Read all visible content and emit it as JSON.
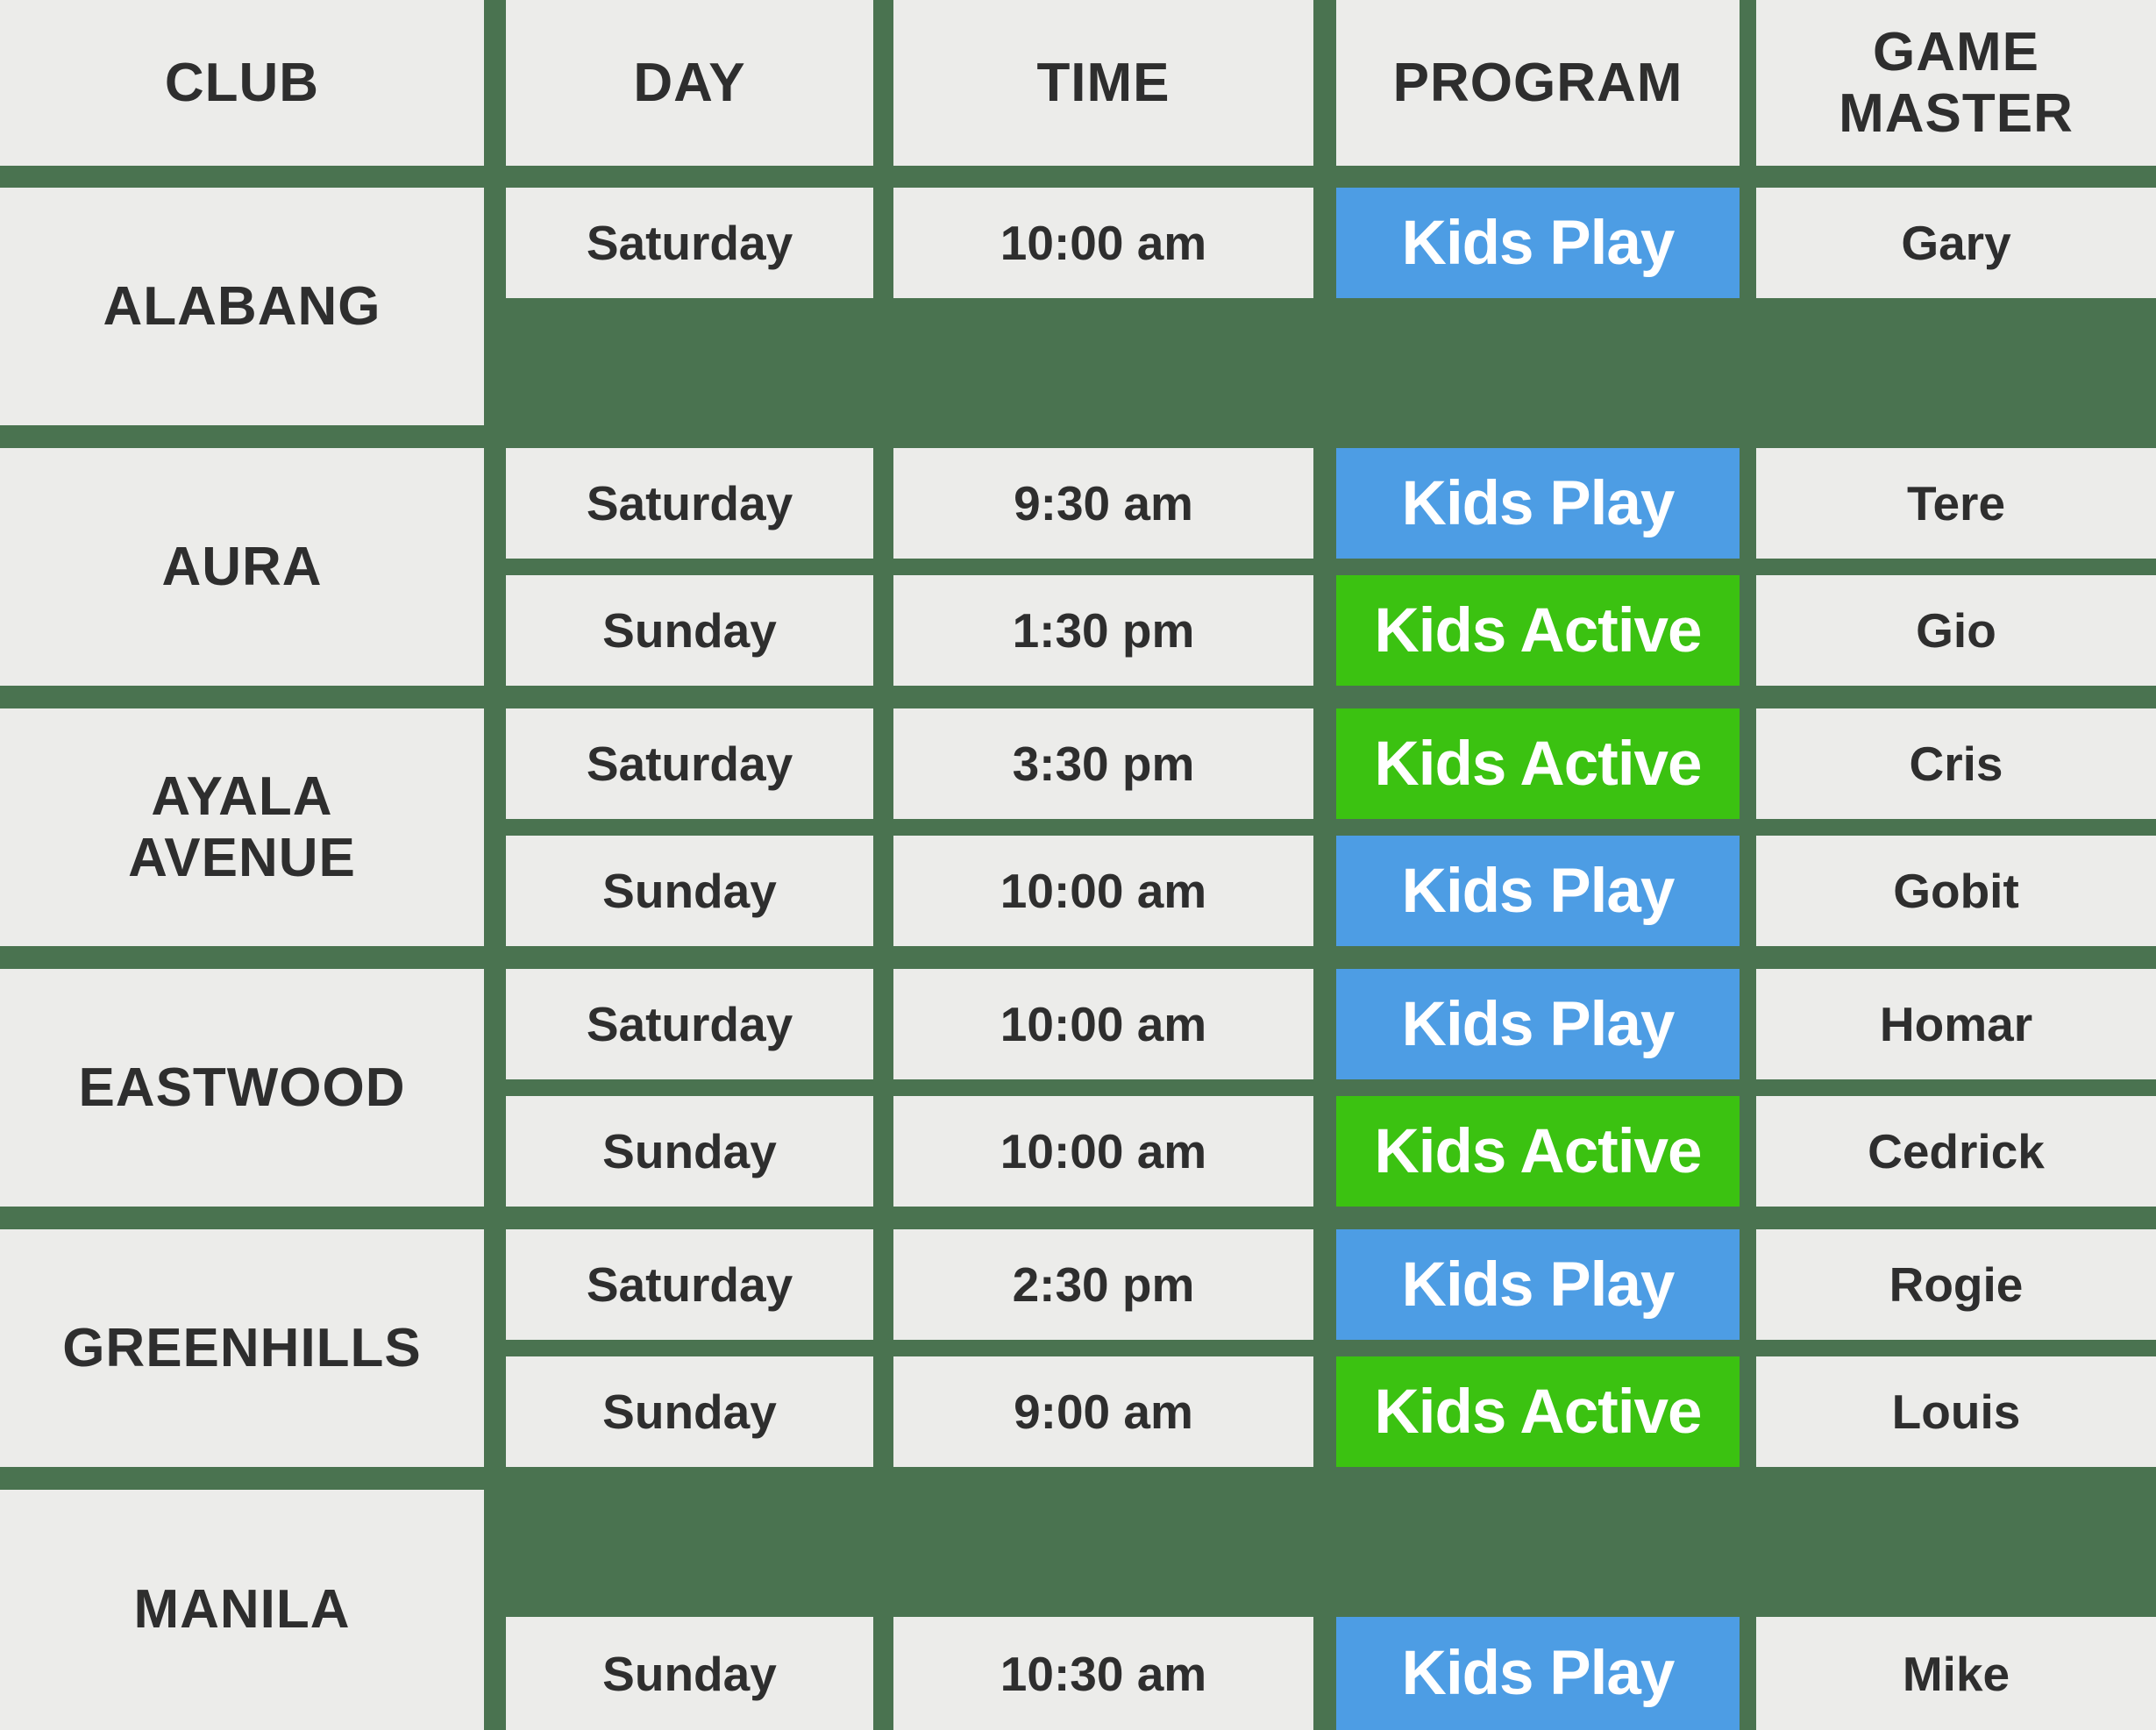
{
  "colors": {
    "background_green": "#4A7350",
    "cell_gray": "#ECECEA",
    "text_dark": "#2E2E2E",
    "kids_play_blue": "#4D9DE4",
    "kids_active_green": "#3BC211",
    "badge_text_white": "#FFFFFF"
  },
  "header": {
    "club": "CLUB",
    "day": "DAY",
    "time": "TIME",
    "program": "PROGRAM",
    "game_master": "GAME\nMASTER"
  },
  "sections": [
    {
      "club": "ALABANG",
      "rows": [
        {
          "day": "Saturday",
          "time": "10:00 am",
          "program": {
            "label": "Kids Play",
            "type": "kids-play"
          },
          "game_master": "Gary"
        },
        null
      ]
    },
    {
      "club": "AURA",
      "rows": [
        {
          "day": "Saturday",
          "time": "9:30 am",
          "program": {
            "label": "Kids Play",
            "type": "kids-play"
          },
          "game_master": "Tere"
        },
        {
          "day": "Sunday",
          "time": "1:30 pm",
          "program": {
            "label": "Kids Active",
            "type": "kids-active"
          },
          "game_master": "Gio"
        }
      ]
    },
    {
      "club": "AYALA\nAVENUE",
      "rows": [
        {
          "day": "Saturday",
          "time": "3:30 pm",
          "program": {
            "label": "Kids Active",
            "type": "kids-active"
          },
          "game_master": "Cris"
        },
        {
          "day": "Sunday",
          "time": "10:00 am",
          "program": {
            "label": "Kids Play",
            "type": "kids-play"
          },
          "game_master": "Gobit"
        }
      ]
    },
    {
      "club": "EASTWOOD",
      "rows": [
        {
          "day": "Saturday",
          "time": "10:00 am",
          "program": {
            "label": "Kids Play",
            "type": "kids-play"
          },
          "game_master": "Homar"
        },
        {
          "day": "Sunday",
          "time": "10:00 am",
          "program": {
            "label": "Kids Active",
            "type": "kids-active"
          },
          "game_master": "Cedrick"
        }
      ]
    },
    {
      "club": "GREENHILLS",
      "rows": [
        {
          "day": "Saturday",
          "time": "2:30 pm",
          "program": {
            "label": "Kids Play",
            "type": "kids-play"
          },
          "game_master": "Rogie"
        },
        {
          "day": "Sunday",
          "time": "9:00 am",
          "program": {
            "label": "Kids Active",
            "type": "kids-active"
          },
          "game_master": "Louis"
        }
      ]
    },
    {
      "club": "MANILA",
      "rows": [
        null,
        {
          "day": "Sunday",
          "time": "10:30 am",
          "program": {
            "label": "Kids Play",
            "type": "kids-play"
          },
          "game_master": "Mike"
        }
      ]
    }
  ]
}
